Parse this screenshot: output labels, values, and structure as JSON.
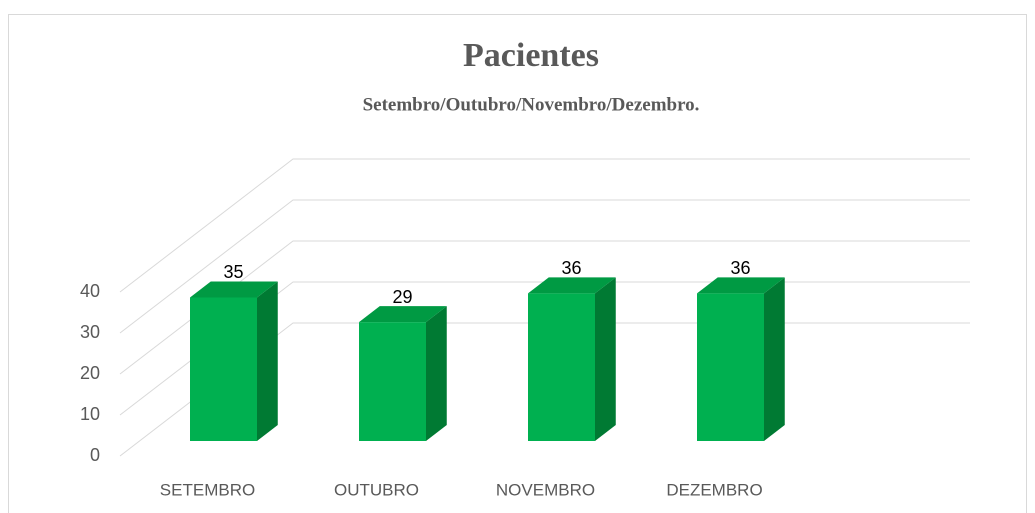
{
  "chart_data": {
    "type": "bar3d",
    "title": "Pacientes",
    "subtitle": "Setembro/Outubro/Novembro/Dezembro.",
    "categories": [
      "SETEMBRO",
      "OUTUBRO",
      "NOVEMBRO",
      "DEZEMBRO"
    ],
    "values": [
      35,
      29,
      36,
      36
    ],
    "color": "#00b050",
    "ylim": [
      0,
      40
    ],
    "yticks": [
      0,
      10,
      20,
      30,
      40
    ],
    "grid": true
  }
}
